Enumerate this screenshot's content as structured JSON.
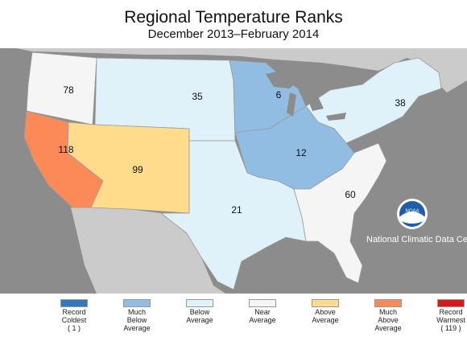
{
  "title": "Regional Temperature Ranks",
  "subtitle": "December 2013–February 2014",
  "colors": {
    "record_coldest": "#3477bd",
    "much_below": "#91bde3",
    "below": "#dff1f9",
    "near": "#f5f5f5",
    "above": "#fedc8c",
    "much_above": "#fb8a58",
    "record_warmest": "#d7191c",
    "background": "#8c8c8c",
    "land_outside": "#cbcbcb"
  },
  "regions": [
    {
      "name": "Northwest",
      "rank": "78",
      "category": "near"
    },
    {
      "name": "West North Central",
      "rank": "35",
      "category": "below"
    },
    {
      "name": "East North Central",
      "rank": "6",
      "category": "much_below"
    },
    {
      "name": "Northeast",
      "rank": "38",
      "category": "below"
    },
    {
      "name": "West",
      "rank": "118",
      "category": "much_above"
    },
    {
      "name": "Southwest",
      "rank": "99",
      "category": "above"
    },
    {
      "name": "Central",
      "rank": "12",
      "category": "much_below"
    },
    {
      "name": "South",
      "rank": "21",
      "category": "below"
    },
    {
      "name": "Southeast",
      "rank": "60",
      "category": "near"
    }
  ],
  "noaa": {
    "logo_text": "NOAA",
    "org_name": "National Climatic Data Center"
  },
  "legend": [
    {
      "lines": [
        "Record",
        "Coldest"
      ],
      "count": "( 1 )",
      "category": "record_coldest"
    },
    {
      "lines": [
        "Much",
        "Below",
        "Average"
      ],
      "count": "",
      "category": "much_below"
    },
    {
      "lines": [
        "Below",
        "Average"
      ],
      "count": "",
      "category": "below"
    },
    {
      "lines": [
        "Near",
        "Average"
      ],
      "count": "",
      "category": "near"
    },
    {
      "lines": [
        "Above",
        "Average"
      ],
      "count": "",
      "category": "above"
    },
    {
      "lines": [
        "Much",
        "Above",
        "Average"
      ],
      "count": "",
      "category": "much_above"
    },
    {
      "lines": [
        "Record",
        "Warmest"
      ],
      "count": "( 119 )",
      "category": "record_warmest"
    }
  ]
}
